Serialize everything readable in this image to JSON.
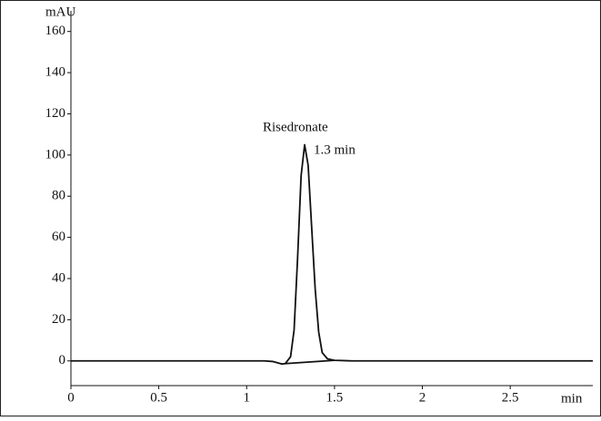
{
  "chart_data": {
    "type": "line",
    "x_label": "min",
    "y_label": "mAU",
    "annotations": [
      "Risedronate",
      "1.3 min"
    ],
    "xlim": [
      0,
      2.97
    ],
    "ylim": [
      -12,
      170
    ],
    "xticks": [
      0,
      0.5,
      1,
      1.5,
      2,
      2.5
    ],
    "yticks": [
      0,
      20,
      40,
      60,
      80,
      100,
      120,
      140,
      160
    ],
    "grid": false,
    "series": [
      {
        "color": "#111111",
        "x": [
          0,
          1.0,
          1.1,
          1.15,
          1.2,
          1.22,
          1.25,
          1.27,
          1.29,
          1.31,
          1.33,
          1.35,
          1.37,
          1.39,
          1.41,
          1.43,
          1.46,
          1.5,
          1.6,
          2.0,
          2.97
        ],
        "values": [
          0,
          0,
          0,
          -0.3,
          -1.5,
          -1.3,
          2,
          15,
          50,
          90,
          105,
          95,
          65,
          35,
          14,
          4,
          1,
          0.3,
          0,
          0,
          0
        ]
      },
      {
        "color": "#111111",
        "x": [
          1.22,
          1.5
        ],
        "values": [
          -1.3,
          0.3
        ]
      }
    ]
  }
}
